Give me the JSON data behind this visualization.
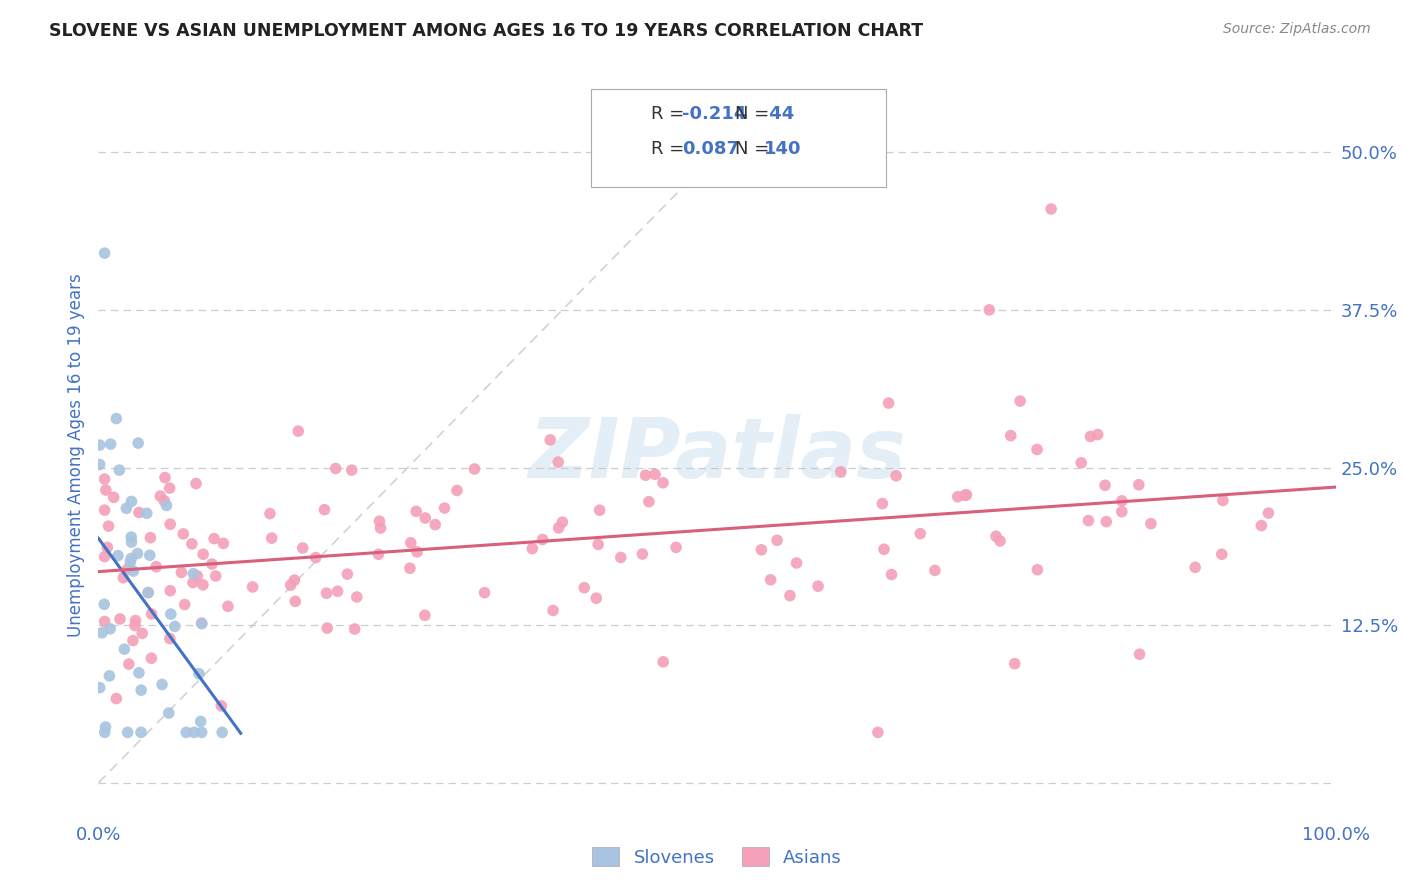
{
  "title": "SLOVENE VS ASIAN UNEMPLOYMENT AMONG AGES 16 TO 19 YEARS CORRELATION CHART",
  "source": "Source: ZipAtlas.com",
  "ylabel": "Unemployment Among Ages 16 to 19 years",
  "xlim": [
    0,
    1.0
  ],
  "ylim": [
    -0.03,
    0.55
  ],
  "yticks": [
    0.0,
    0.125,
    0.25,
    0.375,
    0.5
  ],
  "yticklabels": [
    "",
    "12.5%",
    "25.0%",
    "37.5%",
    "50.0%"
  ],
  "color_slovene": "#a8c4e0",
  "color_asian": "#f4a0b8",
  "color_slovene_line": "#4472c4",
  "color_asian_line": "#d9607a",
  "color_title": "#333333",
  "color_axis_labels": "#4472c4",
  "color_source": "#888888",
  "color_grid": "#c8c8c8",
  "color_diagonal": "#c0c0c0",
  "watermark": "ZIPatlas",
  "legend_text1": "R = -0.214   N =  44",
  "legend_text2": "R =  0.087   N = 140"
}
